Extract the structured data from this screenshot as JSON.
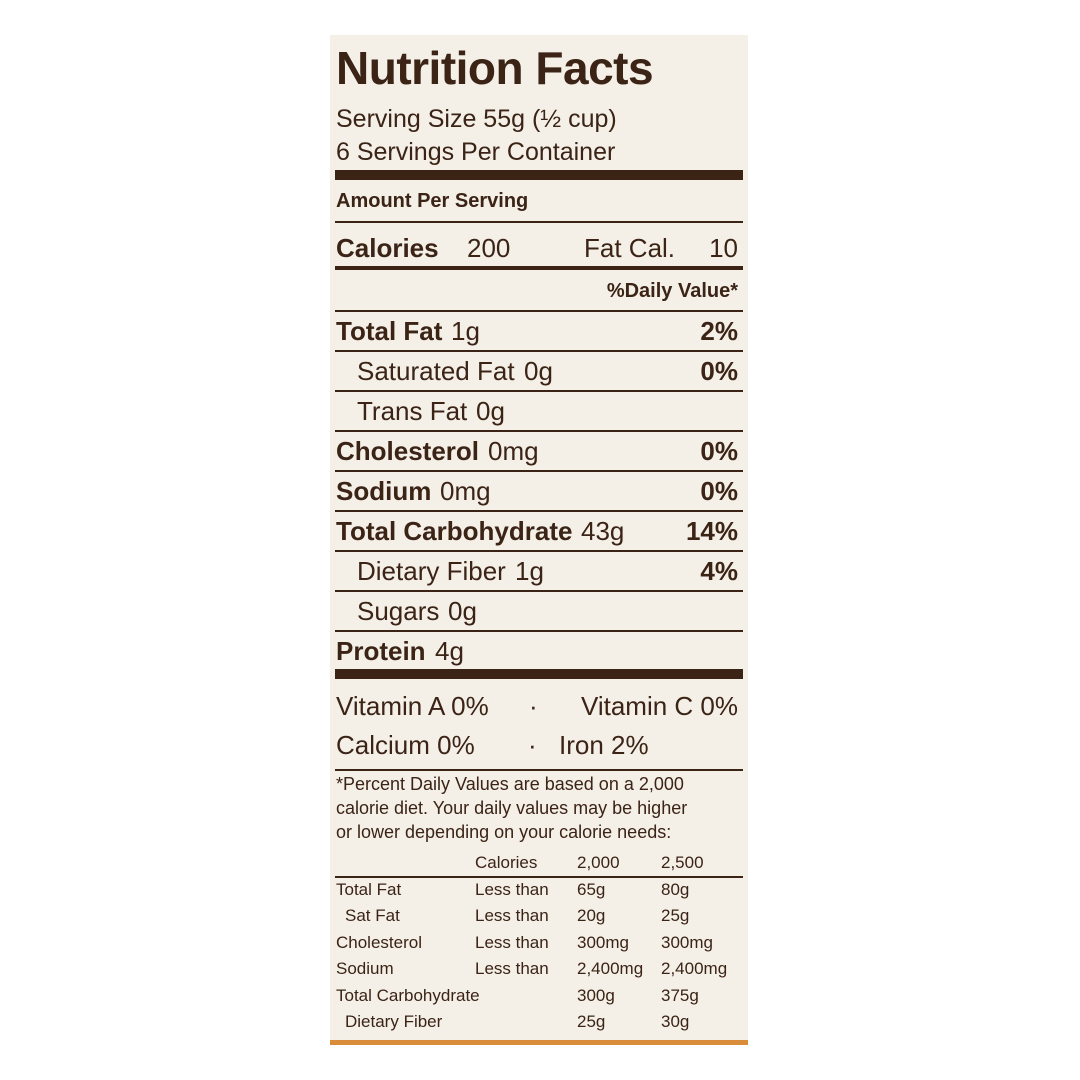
{
  "label": {
    "title": "Nutrition Facts",
    "serving_size": "Serving Size 55g (½ cup)",
    "servings": "6 Servings Per Container",
    "amount_per_serving": "Amount Per Serving",
    "calories": {
      "label": "Calories",
      "value": "200",
      "fat_label": "Fat Cal.",
      "fat_value": "10"
    },
    "daily_value_header": "%Daily Value*",
    "nutrients": [
      {
        "name": "Total Fat",
        "amount": "1g",
        "dv": "2%",
        "sub": [
          {
            "name": "Saturated Fat",
            "amount": "0g",
            "dv": "0%"
          },
          {
            "name": "Trans Fat",
            "amount": "0g"
          }
        ]
      },
      {
        "name": "Cholesterol",
        "amount": "0mg",
        "dv": "0%"
      },
      {
        "name": "Sodium",
        "amount": "0mg",
        "dv": "0%"
      },
      {
        "name": "Total Carbohydrate",
        "amount": "43g",
        "dv": "14%",
        "sub": [
          {
            "name": "Dietary Fiber",
            "amount": "1g",
            "dv": "4%"
          },
          {
            "name": "Sugars",
            "amount": "0g"
          }
        ]
      },
      {
        "name": "Protein",
        "amount": "4g"
      }
    ],
    "vitamins": [
      [
        "Vitamin A 0%",
        "Vitamin C 0%"
      ],
      [
        "Calcium 0%",
        "Iron 2%"
      ]
    ],
    "footnote": [
      "*Percent Daily Values are based on a 2,000",
      "calorie diet. Your daily values may be higher",
      "or lower depending on your calorie needs:"
    ],
    "reference_table": {
      "header": [
        "Calories",
        "2,000",
        "2,500"
      ],
      "rows": [
        [
          "Total Fat",
          "Less than",
          "65g",
          "80g"
        ],
        [
          "Sat Fat",
          "Less than",
          "20g",
          "25g"
        ],
        [
          "Cholesterol",
          "Less than",
          "300mg",
          "300mg"
        ],
        [
          "Sodium",
          "Less than",
          "2,400mg",
          "2,400mg"
        ],
        [
          "Total Carbohydrate",
          null,
          "300g",
          "375g"
        ],
        [
          "Dietary Fiber",
          null,
          "25g",
          "30g"
        ]
      ]
    }
  }
}
